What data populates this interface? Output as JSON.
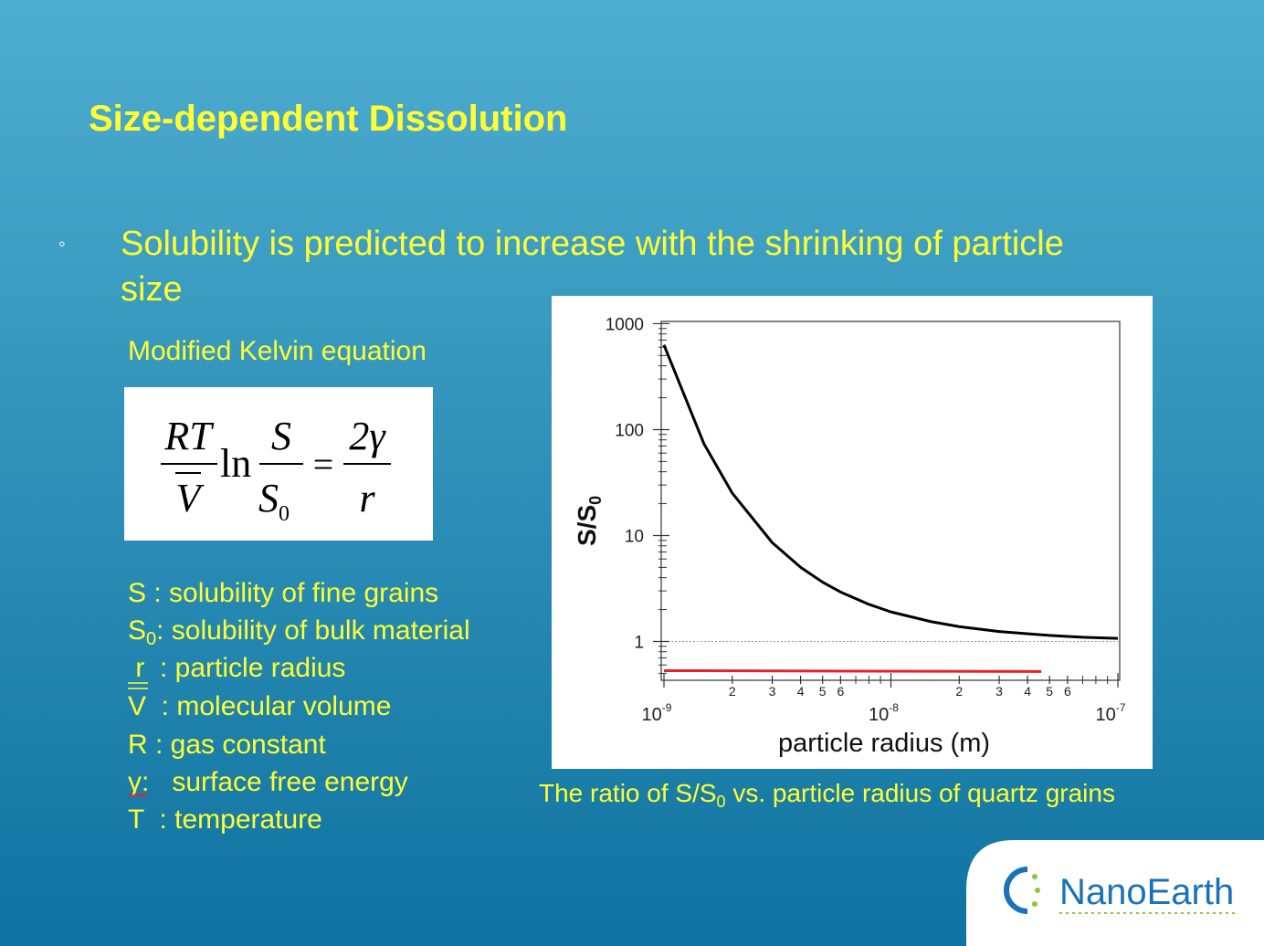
{
  "slide": {
    "title": "Size-dependent Dissolution",
    "bullet_marker": "◦",
    "bullet_lines": [
      "Solubility is predicted to increase with the shrinking of particle",
      "size"
    ],
    "equation_label": "Modified Kelvin equation",
    "equation": {
      "lhs_num": "RT",
      "lhs_den": "V",
      "ln": "ln",
      "frac_num": "S",
      "frac_den": "S",
      "frac_den_sub": "0",
      "equals": "=",
      "rhs_num": "2γ",
      "rhs_den": "r"
    },
    "definitions": [
      {
        "text": "S : solubility of  fine grains"
      },
      {
        "pre": "S",
        "sub": "0",
        "text": ": solubility of bulk material"
      },
      {
        "text": " r  : particle radius"
      },
      {
        "text": "V  : molecular volume"
      },
      {
        "text": "R : gas constant"
      },
      {
        "text": "γ:   surface free energy"
      },
      {
        "text": "T  : temperature"
      }
    ],
    "caption": {
      "pre": "The ratio of S/S",
      "sub": "0",
      "post": " vs. particle radius of quartz grains"
    },
    "logo": "NanoEarth"
  },
  "chart_data": {
    "type": "line",
    "xlabel": "particle radius (m)",
    "ylabel": {
      "text": "S/S",
      "sub": "0"
    },
    "log_x": true,
    "log_y": true,
    "xlim": [
      1e-09,
      1e-07
    ],
    "ylim": [
      0.43,
      1050
    ],
    "xticks": [
      {
        "value": 1e-09,
        "label": "10",
        "exponent": "-9"
      },
      {
        "value": 2e-09,
        "label": "2"
      },
      {
        "value": 3e-09,
        "label": "3"
      },
      {
        "value": 4e-09,
        "label": "4"
      },
      {
        "value": 5e-09,
        "label": "5"
      },
      {
        "value": 6e-09,
        "label": "6"
      },
      {
        "value": 1e-08,
        "label": "10",
        "exponent": "-8"
      },
      {
        "value": 2e-08,
        "label": "2"
      },
      {
        "value": 3e-08,
        "label": "3"
      },
      {
        "value": 4e-08,
        "label": "4"
      },
      {
        "value": 5e-08,
        "label": "5"
      },
      {
        "value": 6e-08,
        "label": "6"
      },
      {
        "value": 1e-07,
        "label": "10",
        "exponent": "-7"
      }
    ],
    "xminorticks": [
      7e-09,
      8e-09,
      9e-09,
      7e-08,
      8e-08,
      9e-08
    ],
    "yticks": [
      1,
      10,
      100,
      1000
    ],
    "yminorticks": [
      0.5,
      0.6,
      0.7,
      0.8,
      0.9,
      2,
      3,
      4,
      5,
      6,
      7,
      8,
      9,
      20,
      30,
      40,
      50,
      60,
      70,
      80,
      90,
      200,
      300,
      400,
      500,
      600,
      700,
      800,
      900
    ],
    "reference_line": 1,
    "series": [
      {
        "color": "#000000",
        "x": [
          1e-09,
          1.5e-09,
          2e-09,
          3e-09,
          4e-09,
          5e-09,
          6e-09,
          8e-09,
          1e-08,
          1.5e-08,
          2e-08,
          3e-08,
          5e-08,
          7e-08,
          1e-07
        ],
        "values": [
          630,
          73.5,
          25.1,
          8.57,
          5.01,
          3.63,
          2.93,
          2.24,
          1.9,
          1.54,
          1.38,
          1.24,
          1.14,
          1.096,
          1.07
        ]
      },
      {
        "color": "#e8202a",
        "x": [
          1e-09,
          4.6e-08
        ],
        "values": [
          0.53,
          0.52
        ]
      }
    ]
  }
}
